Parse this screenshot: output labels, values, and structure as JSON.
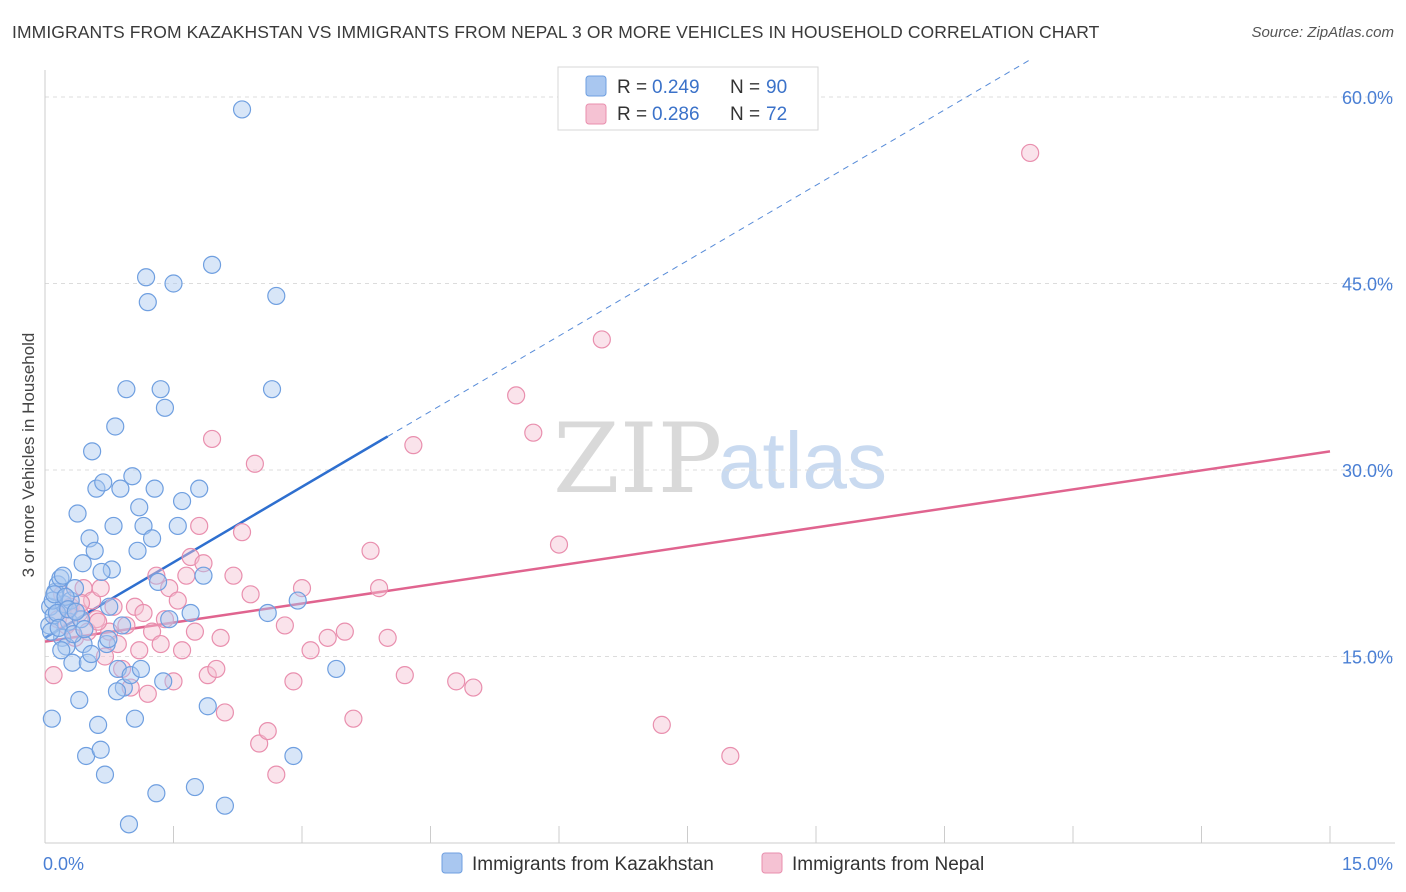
{
  "title": "IMMIGRANTS FROM KAZAKHSTAN VS IMMIGRANTS FROM NEPAL 3 OR MORE VEHICLES IN HOUSEHOLD CORRELATION CHART",
  "source": "Source: ZipAtlas.com",
  "watermark": {
    "zip": "ZIP",
    "atlas": "atlas"
  },
  "legend": {
    "r_label": "R =",
    "n_label": "N =",
    "entries": [
      {
        "r": "0.249",
        "n": "90"
      },
      {
        "r": "0.286",
        "n": "72"
      }
    ]
  },
  "colors": {
    "blue_fill": "#a9c7f0",
    "blue_stroke": "#6f9fe0",
    "blue_line": "#2e6fcf",
    "pink_fill": "#f5c2d3",
    "pink_stroke": "#e98fae",
    "pink_line": "#e0648f"
  },
  "chart_data": {
    "type": "scatter",
    "title": "IMMIGRANTS FROM KAZAKHSTAN VS IMMIGRANTS FROM NEPAL 3 OR MORE VEHICLES IN HOUSEHOLD CORRELATION CHART",
    "xlabel": "",
    "ylabel": "3 or more Vehicles in Household",
    "xlim": [
      0,
      15
    ],
    "ylim": [
      0,
      60
    ],
    "x_tick_labels": [
      "0.0%",
      "15.0%"
    ],
    "y_tick_labels": [
      "15.0%",
      "30.0%",
      "45.0%",
      "60.0%"
    ],
    "y_ticks": [
      15,
      30,
      45,
      60
    ],
    "series": [
      {
        "name": "Immigrants from Kazakhstan",
        "color": "blue",
        "trend": {
          "x0": 0,
          "y0": 16.5,
          "x1": 4.0,
          "y1": 32.7,
          "dash_x1": 11.5,
          "dash_y1": 63
        },
        "points": [
          [
            0.05,
            17.5
          ],
          [
            0.06,
            19.0
          ],
          [
            0.08,
            10.0
          ],
          [
            0.1,
            18.3
          ],
          [
            0.12,
            20.2
          ],
          [
            0.15,
            20.8
          ],
          [
            0.18,
            21.3
          ],
          [
            0.2,
            16.5
          ],
          [
            0.22,
            19.2
          ],
          [
            0.25,
            15.8
          ],
          [
            0.28,
            17.8
          ],
          [
            0.3,
            19.5
          ],
          [
            0.32,
            14.5
          ],
          [
            0.35,
            20.5
          ],
          [
            0.38,
            26.5
          ],
          [
            0.4,
            11.5
          ],
          [
            0.42,
            18.0
          ],
          [
            0.45,
            16.0
          ],
          [
            0.48,
            7.0
          ],
          [
            0.5,
            14.5
          ],
          [
            0.52,
            24.5
          ],
          [
            0.55,
            31.5
          ],
          [
            0.58,
            23.5
          ],
          [
            0.6,
            28.5
          ],
          [
            0.62,
            9.5
          ],
          [
            0.65,
            7.5
          ],
          [
            0.68,
            29.0
          ],
          [
            0.7,
            5.5
          ],
          [
            0.72,
            16.0
          ],
          [
            0.75,
            19.0
          ],
          [
            0.78,
            22.0
          ],
          [
            0.8,
            25.5
          ],
          [
            0.82,
            33.5
          ],
          [
            0.85,
            14.0
          ],
          [
            0.88,
            28.5
          ],
          [
            0.9,
            17.5
          ],
          [
            0.92,
            12.5
          ],
          [
            0.95,
            36.5
          ],
          [
            0.98,
            1.5
          ],
          [
            1.0,
            13.5
          ],
          [
            1.02,
            29.5
          ],
          [
            1.05,
            10.0
          ],
          [
            1.08,
            23.5
          ],
          [
            1.1,
            27.0
          ],
          [
            1.12,
            14.0
          ],
          [
            1.15,
            25.5
          ],
          [
            1.18,
            45.5
          ],
          [
            1.2,
            43.5
          ],
          [
            1.25,
            24.5
          ],
          [
            1.28,
            28.5
          ],
          [
            1.3,
            4.0
          ],
          [
            1.32,
            21.0
          ],
          [
            1.35,
            36.5
          ],
          [
            1.38,
            13.0
          ],
          [
            1.4,
            35.0
          ],
          [
            1.45,
            18.0
          ],
          [
            1.5,
            45.0
          ],
          [
            1.55,
            25.5
          ],
          [
            1.6,
            27.5
          ],
          [
            1.7,
            18.5
          ],
          [
            1.75,
            4.5
          ],
          [
            1.8,
            28.5
          ],
          [
            1.85,
            21.5
          ],
          [
            1.9,
            11.0
          ],
          [
            1.95,
            46.5
          ],
          [
            2.1,
            3.0
          ],
          [
            2.3,
            59.0
          ],
          [
            2.6,
            18.5
          ],
          [
            2.65,
            36.5
          ],
          [
            2.7,
            44.0
          ],
          [
            2.9,
            7.0
          ],
          [
            2.95,
            19.5
          ],
          [
            3.4,
            14.0
          ],
          [
            0.07,
            17.0
          ],
          [
            0.09,
            19.5
          ],
          [
            0.11,
            20.0
          ],
          [
            0.14,
            18.5
          ],
          [
            0.16,
            17.3
          ],
          [
            0.19,
            15.5
          ],
          [
            0.21,
            21.5
          ],
          [
            0.24,
            19.8
          ],
          [
            0.27,
            18.8
          ],
          [
            0.33,
            16.8
          ],
          [
            0.36,
            18.6
          ],
          [
            0.44,
            22.5
          ],
          [
            0.46,
            17.2
          ],
          [
            0.54,
            15.2
          ],
          [
            0.66,
            21.8
          ],
          [
            0.74,
            16.4
          ],
          [
            0.84,
            12.2
          ]
        ]
      },
      {
        "name": "Immigrants from Nepal",
        "color": "pink",
        "trend": {
          "x0": 0,
          "y0": 16.2,
          "x1": 15,
          "y1": 31.5
        },
        "points": [
          [
            0.1,
            13.5
          ],
          [
            0.15,
            18.0
          ],
          [
            0.2,
            20.0
          ],
          [
            0.25,
            17.5
          ],
          [
            0.3,
            19.0
          ],
          [
            0.35,
            16.5
          ],
          [
            0.4,
            18.5
          ],
          [
            0.45,
            20.5
          ],
          [
            0.5,
            17.0
          ],
          [
            0.55,
            19.5
          ],
          [
            0.6,
            18.0
          ],
          [
            0.65,
            20.5
          ],
          [
            0.7,
            15.0
          ],
          [
            0.75,
            17.0
          ],
          [
            0.8,
            19.0
          ],
          [
            0.85,
            16.0
          ],
          [
            0.9,
            14.0
          ],
          [
            0.95,
            17.5
          ],
          [
            1.0,
            12.5
          ],
          [
            1.05,
            19.0
          ],
          [
            1.1,
            15.5
          ],
          [
            1.15,
            18.5
          ],
          [
            1.2,
            12.0
          ],
          [
            1.25,
            17.0
          ],
          [
            1.3,
            21.5
          ],
          [
            1.35,
            16.0
          ],
          [
            1.4,
            18.0
          ],
          [
            1.45,
            20.5
          ],
          [
            1.5,
            13.0
          ],
          [
            1.55,
            19.5
          ],
          [
            1.6,
            15.5
          ],
          [
            1.65,
            21.5
          ],
          [
            1.7,
            23.0
          ],
          [
            1.75,
            17.0
          ],
          [
            1.8,
            25.5
          ],
          [
            1.85,
            22.5
          ],
          [
            1.9,
            13.5
          ],
          [
            1.95,
            32.5
          ],
          [
            2.0,
            14.0
          ],
          [
            2.05,
            16.5
          ],
          [
            2.1,
            10.5
          ],
          [
            2.2,
            21.5
          ],
          [
            2.3,
            25.0
          ],
          [
            2.4,
            20.0
          ],
          [
            2.45,
            30.5
          ],
          [
            2.5,
            8.0
          ],
          [
            2.6,
            9.0
          ],
          [
            2.7,
            5.5
          ],
          [
            2.8,
            17.5
          ],
          [
            2.9,
            13.0
          ],
          [
            3.0,
            20.5
          ],
          [
            3.1,
            15.5
          ],
          [
            3.3,
            16.5
          ],
          [
            3.5,
            17.0
          ],
          [
            3.6,
            10.0
          ],
          [
            3.8,
            23.5
          ],
          [
            3.9,
            20.5
          ],
          [
            4.0,
            16.5
          ],
          [
            4.2,
            13.5
          ],
          [
            4.3,
            32.0
          ],
          [
            4.8,
            13.0
          ],
          [
            5.0,
            12.5
          ],
          [
            5.5,
            36.0
          ],
          [
            5.7,
            33.0
          ],
          [
            6.0,
            24.0
          ],
          [
            6.5,
            40.5
          ],
          [
            7.2,
            9.5
          ],
          [
            8.0,
            7.0
          ],
          [
            11.5,
            55.5
          ],
          [
            0.28,
            18.8
          ],
          [
            0.42,
            19.3
          ],
          [
            0.62,
            17.8
          ]
        ]
      }
    ]
  },
  "bottom_legend": [
    "Immigrants from Kazakhstan",
    "Immigrants from Nepal"
  ]
}
